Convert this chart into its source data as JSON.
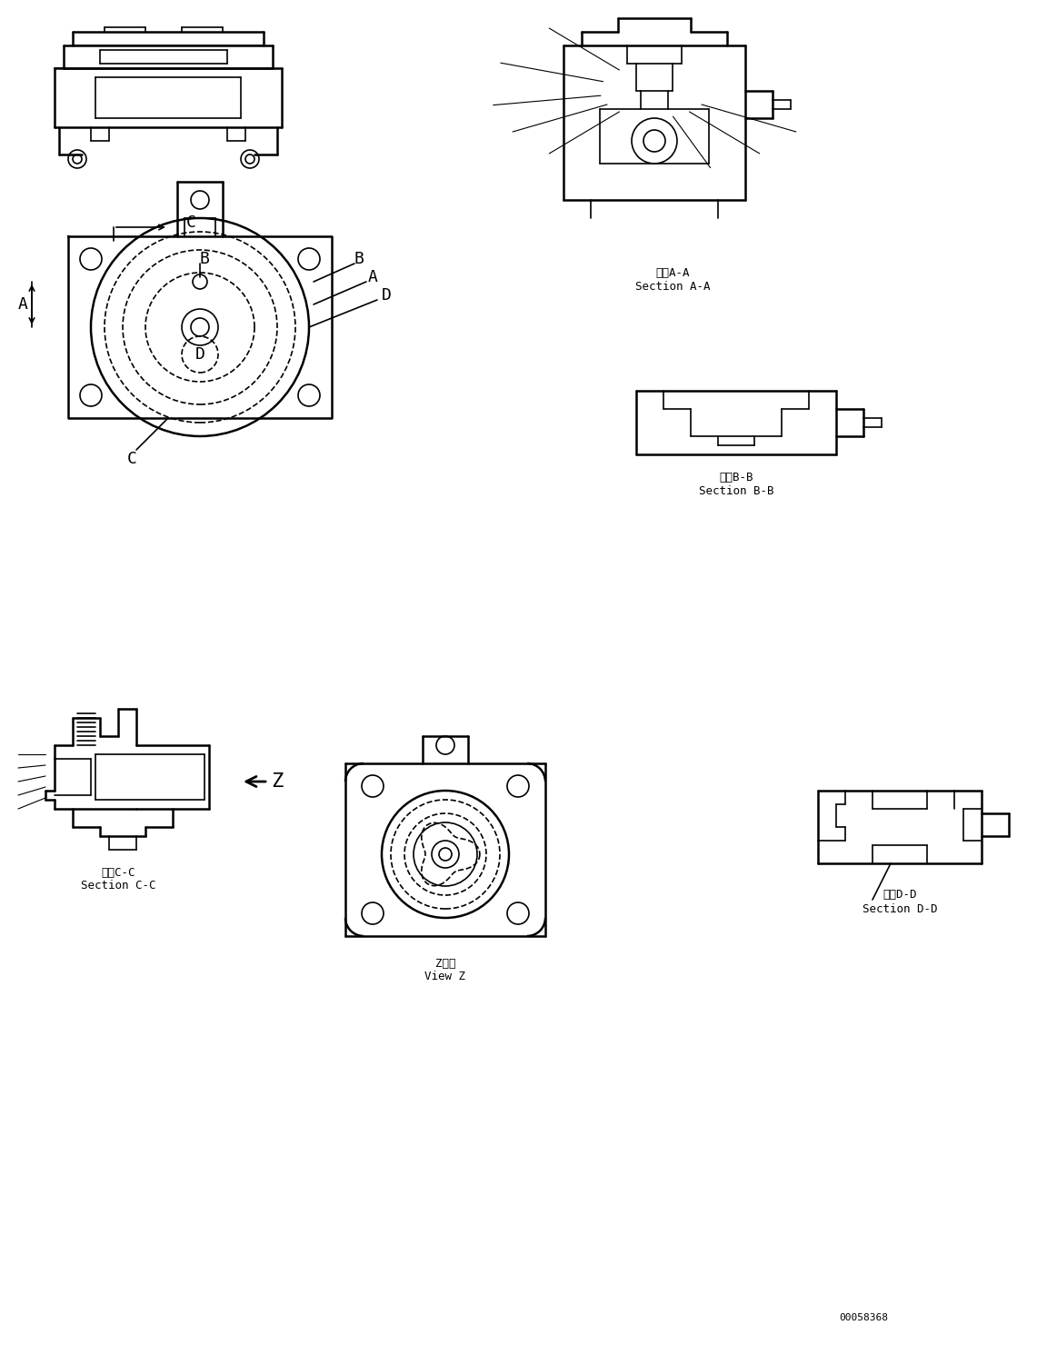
{
  "bg_color": "#ffffff",
  "line_color": "#000000",
  "figure_width": 11.63,
  "figure_height": 14.8,
  "dpi": 100,
  "labels": {
    "section_aa_jp": "断面A-A",
    "section_aa_en": "Section A-A",
    "section_bb_jp": "断面B-B",
    "section_bb_en": "Section B-B",
    "section_cc_jp": "断面C-C",
    "section_cc_en": "Section C-C",
    "section_dd_jp": "断面D-D",
    "section_dd_en": "Section D-D",
    "view_z_jp": "Z　視",
    "view_z_en": "View Z",
    "part_number": "00058368"
  },
  "font_size_label": 9,
  "font_size_annotation": 11,
  "font_size_partnum": 8
}
